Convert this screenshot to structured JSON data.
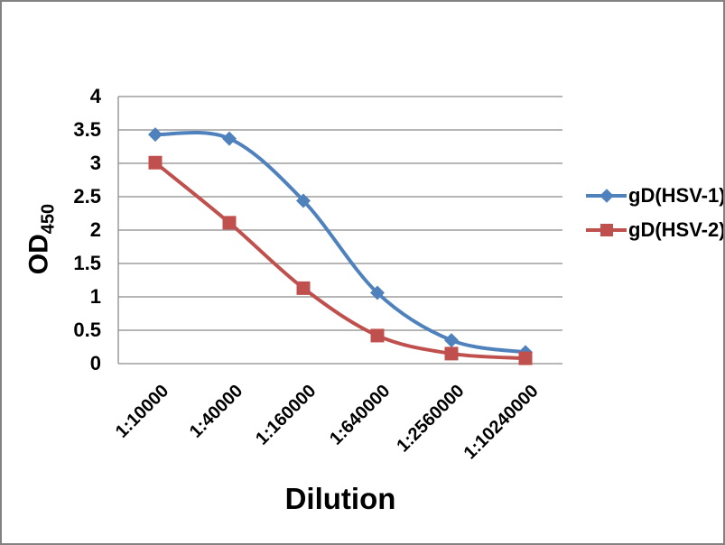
{
  "window": {
    "background": "#FFFFFF",
    "frame_border_color": "#828282"
  },
  "chart_data": {
    "type": "line",
    "title": "",
    "xlabel": "Dilution",
    "ylabel": "OD450",
    "ylabel_main": "OD",
    "ylabel_sub": "450",
    "categories": [
      "1:10000",
      "1:40000",
      "1:160000",
      "1:640000",
      "1:2560000",
      "1:10240000"
    ],
    "series": [
      {
        "name": "gD(HSV-1)",
        "color": "#4F81BD",
        "marker": "diamond",
        "values": [
          3.43,
          3.37,
          2.44,
          1.06,
          0.35,
          0.17
        ]
      },
      {
        "name": "gD(HSV-2)",
        "color": "#C0504D",
        "marker": "square",
        "values": [
          3.01,
          2.11,
          1.13,
          0.42,
          0.15,
          0.08
        ]
      }
    ],
    "ylim": [
      0,
      4
    ],
    "ytick_step": 0.5,
    "yticks": [
      "4",
      "3.5",
      "3",
      "2.5",
      "2",
      "1.5",
      "1",
      "0.5",
      "0"
    ],
    "grid": "horizontal",
    "gridline_color": "#8B8B8B",
    "axis_color": "#8B8B8B",
    "smoothed_lines": true,
    "legend_position": "right",
    "line_width": 4
  }
}
